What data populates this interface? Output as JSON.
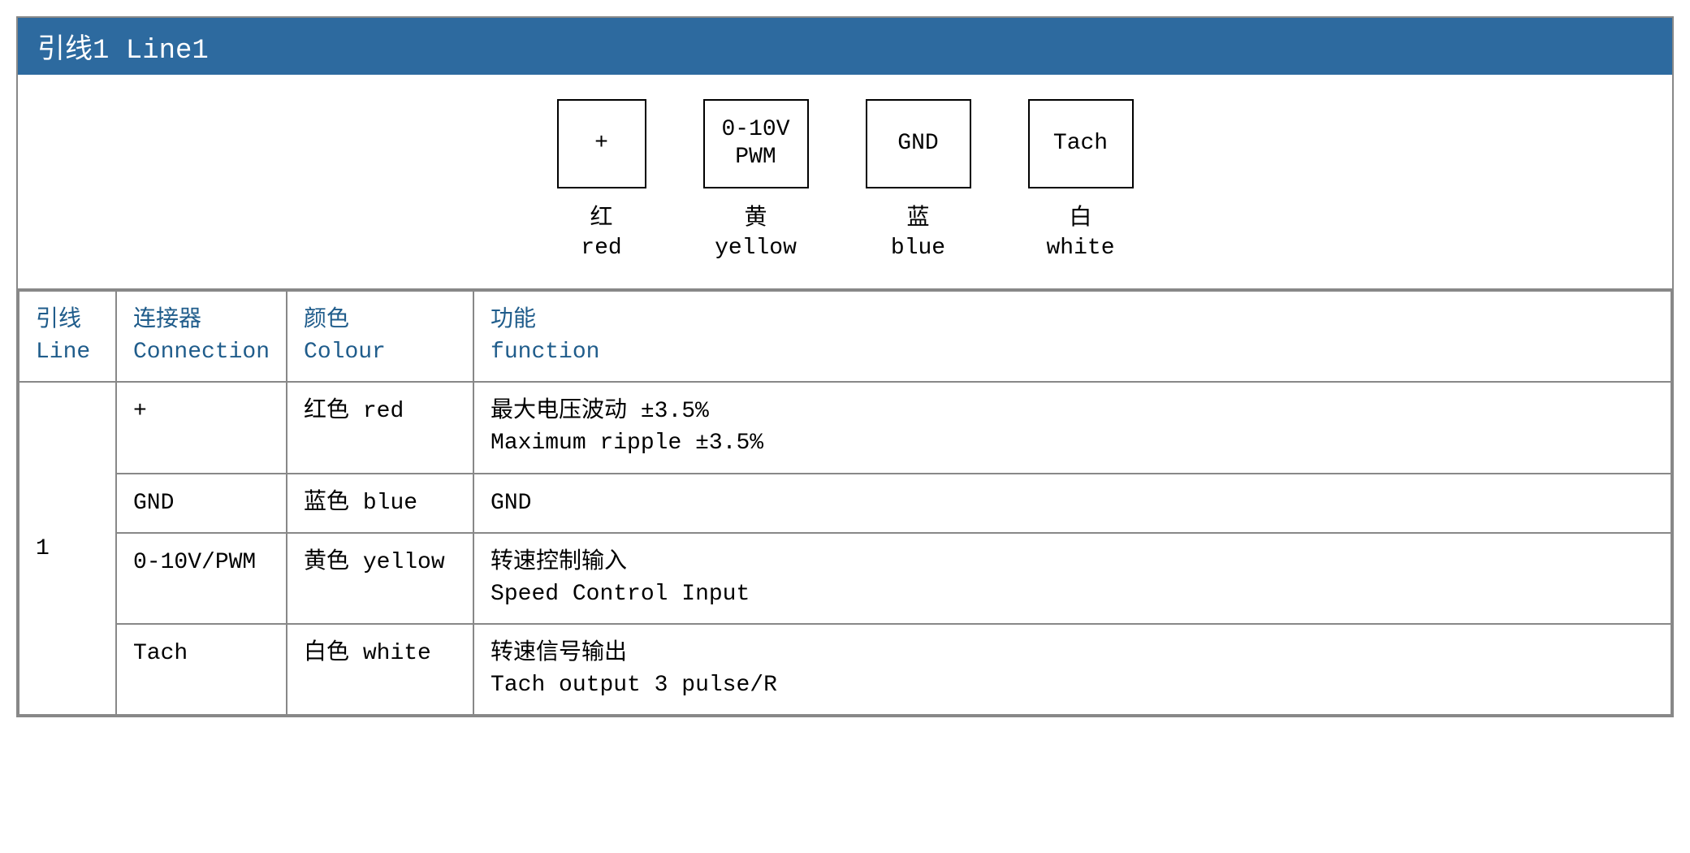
{
  "header": {
    "title": "引线1 Line1",
    "bg_color": "#2d6a9f",
    "text_color": "#ffffff"
  },
  "pins": [
    {
      "box_lines": [
        "+"
      ],
      "label_cn": "红",
      "label_en": "red"
    },
    {
      "box_lines": [
        "0-10V",
        "PWM"
      ],
      "label_cn": "黄",
      "label_en": "yellow"
    },
    {
      "box_lines": [
        "GND"
      ],
      "label_cn": "蓝",
      "label_en": "blue"
    },
    {
      "box_lines": [
        "Tach"
      ],
      "label_cn": "白",
      "label_en": "white"
    }
  ],
  "table": {
    "header_color": "#1f5c8b",
    "columns": [
      {
        "cn": "引线",
        "en": "Line"
      },
      {
        "cn": "连接器",
        "en": "Connection"
      },
      {
        "cn": "颜色",
        "en": "Colour"
      },
      {
        "cn": "功能",
        "en": "function"
      }
    ],
    "line_value": "1",
    "rows": [
      {
        "connection": "+",
        "colour": "红色 red",
        "function_cn": "最大电压波动 ±3.5%",
        "function_en": "Maximum ripple ±3.5%"
      },
      {
        "connection": "GND",
        "colour": "蓝色 blue",
        "function_cn": "GND",
        "function_en": ""
      },
      {
        "connection": "0-10V/PWM",
        "colour": "黄色 yellow",
        "function_cn": "转速控制输入",
        "function_en": "Speed Control Input"
      },
      {
        "connection": "Tach",
        "colour": "白色 white",
        "function_cn": "转速信号输出",
        "function_en": "Tach output 3 pulse/R"
      }
    ]
  }
}
